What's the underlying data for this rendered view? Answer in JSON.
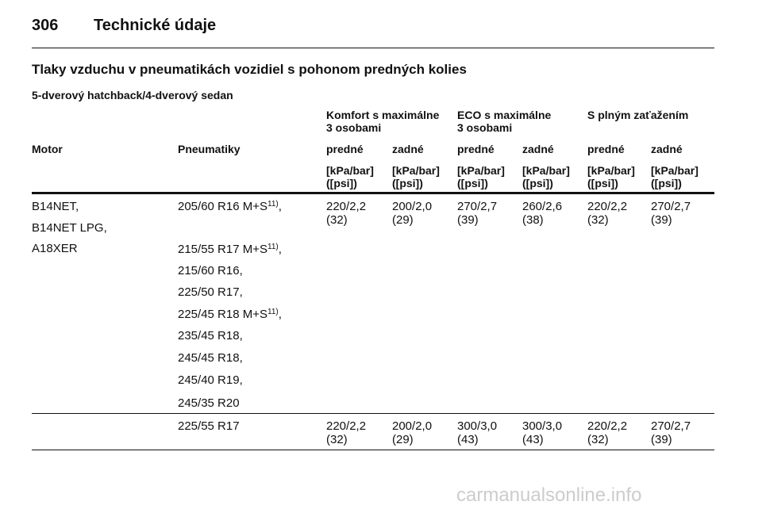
{
  "header": {
    "page_number": "306",
    "title": "Technické údaje"
  },
  "section": {
    "title": "Tlaky vzduchu v pneumatikách vozidiel s pohonom predných kolies",
    "subtitle": "5-dverový hatchback/4-dverový sedan"
  },
  "table": {
    "groups": [
      [
        "Komfort s maximálne",
        "3 osobami"
      ],
      [
        "ECO s maximálne",
        "3 osobami"
      ],
      [
        "S plným zaťažením"
      ]
    ],
    "columns": [
      "Motor",
      "Pneumatiky",
      "predné",
      "zadné",
      "predné",
      "zadné",
      "predné",
      "zadné"
    ],
    "units": [
      "[kPa/bar]",
      "([psi])"
    ],
    "rows": [
      {
        "motor": [
          "B14NET,",
          "B14NET LPG,",
          "A18XER"
        ],
        "tires": [
          {
            "text": "205/60 R16 M+S",
            "note": "11)",
            "punct": ","
          },
          {
            "text": "215/55 R17 M+S",
            "note": "11)",
            "punct": ","
          },
          {
            "text": "215/60 R16,"
          },
          {
            "text": "225/50 R17,"
          },
          {
            "text": "225/45 R18 M+S",
            "note": "11)",
            "punct": ","
          },
          {
            "text": "235/45 R18,"
          },
          {
            "text": "245/45 R18,"
          },
          {
            "text": "245/40 R19,"
          },
          {
            "text": "245/35 R20"
          }
        ],
        "values": [
          [
            "220/2,2",
            "(32)"
          ],
          [
            "200/2,0",
            "(29)"
          ],
          [
            "270/2,7",
            "(39)"
          ],
          [
            "260/2,6",
            "(38)"
          ],
          [
            "220/2,2",
            "(32)"
          ],
          [
            "270/2,7",
            "(39)"
          ]
        ]
      },
      {
        "motor": [],
        "tires": [
          {
            "text": "225/55 R17"
          }
        ],
        "values": [
          [
            "220/2,2",
            "(32)"
          ],
          [
            "200/2,0",
            "(29)"
          ],
          [
            "300/3,0",
            "(43)"
          ],
          [
            "300/3,0",
            "(43)"
          ],
          [
            "220/2,2",
            "(32)"
          ],
          [
            "270/2,7",
            "(39)"
          ]
        ]
      }
    ]
  },
  "watermark": "carmanualsonline.info"
}
